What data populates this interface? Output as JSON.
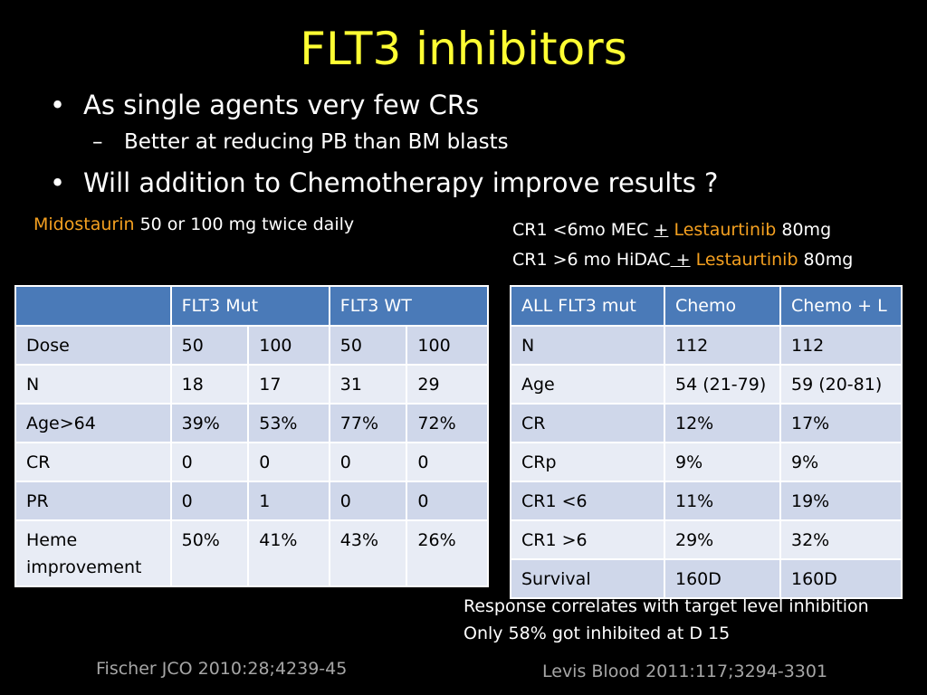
{
  "slide": {
    "title": "FLT3 inhibitors",
    "bullet_char": "•",
    "dash_char": "–",
    "bullets": [
      "As single agents very few CRs",
      "Better at reducing PB than BM blasts",
      "Will addition to Chemotherapy improve  results ?"
    ]
  },
  "left_study": {
    "drug": "Midostaurin",
    "dose_text": " 50 or 100 mg twice daily",
    "header": [
      "",
      "FLT3 Mut",
      "FLT3 WT"
    ],
    "rows": [
      [
        "Dose",
        "50",
        "100",
        "50",
        "100"
      ],
      [
        "N",
        "18",
        "17",
        "31",
        "29"
      ],
      [
        "Age>64",
        "39%",
        "53%",
        "77%",
        "72%"
      ],
      [
        "CR",
        "0",
        "0",
        "0",
        "0"
      ],
      [
        "PR",
        "0",
        "1",
        "0",
        "0"
      ],
      [
        "Heme improvement",
        "50%",
        "41%",
        "43%",
        "26%"
      ]
    ],
    "citation": "Fischer JCO 2010:28;4239-45"
  },
  "right_study": {
    "line1_pre": "CR1 <6mo MEC ",
    "line1_plus": "+",
    "line1_drug": " Lestaurtinib",
    "line1_dose": "  80mg",
    "line2_pre": "CR1 >6 mo HiDAC",
    "line2_plus": " +",
    "line2_drug": " Lestaurtinib",
    "line2_dose": "  80mg",
    "header": [
      "ALL FLT3 mut",
      "Chemo",
      "Chemo + L"
    ],
    "rows": [
      [
        "N",
        "112",
        "112"
      ],
      [
        "Age",
        "54 (21-79)",
        "59 (20-81)"
      ],
      [
        "CR",
        "12%",
        "17%"
      ],
      [
        "CRp",
        "9%",
        "9%"
      ],
      [
        "CR1 <6",
        "11%",
        "19%"
      ],
      [
        "CR1 >6",
        "29%",
        "32%"
      ],
      [
        "Survival",
        "160D",
        "160D"
      ]
    ],
    "note_lines": [
      "Response correlates with target level inhibition",
      "Only 58%  got inhibited at D 15"
    ],
    "citation": "Levis Blood 2011:117;3294-3301"
  },
  "colors": {
    "background": "#000000",
    "title": "#ffff33",
    "drug_highlight": "#f4a020",
    "table_header": "#4a7ab8",
    "row_odd": "#cfd7ea",
    "row_even": "#e8ecf5",
    "citation": "#a6a6a6"
  }
}
